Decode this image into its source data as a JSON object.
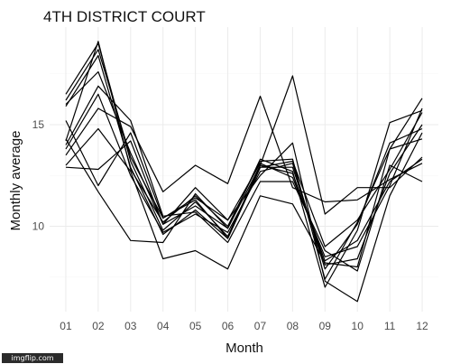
{
  "watermark": "imgflip.com",
  "chart_data": {
    "type": "line",
    "title": "4TH DISTRICT COURT",
    "xlabel": "Month",
    "ylabel": "Monthly average",
    "categories": [
      "01",
      "02",
      "03",
      "04",
      "05",
      "06",
      "07",
      "08",
      "09",
      "10",
      "11",
      "12"
    ],
    "ylim": [
      5.8,
      19.8
    ],
    "yticks": [
      10,
      15
    ],
    "grid": true,
    "legend": "none",
    "line_color": "#000000",
    "series": [
      {
        "values": [
          16.5,
          19.0,
          13.2,
          9.8,
          11.2,
          9.5,
          13.0,
          12.6,
          8.3,
          9.3,
          12.2,
          13.3
        ]
      },
      {
        "values": [
          14.2,
          19.1,
          12.8,
          10.2,
          11.5,
          10.0,
          13.2,
          13.3,
          7.4,
          10.2,
          13.8,
          16.3
        ]
      },
      {
        "values": [
          16.2,
          18.7,
          13.4,
          10.4,
          11.4,
          10.3,
          13.1,
          12.4,
          8.5,
          9.0,
          12.0,
          15.8
        ]
      },
      {
        "values": [
          15.9,
          18.4,
          12.9,
          9.6,
          10.8,
          9.4,
          12.9,
          12.9,
          8.1,
          8.4,
          12.6,
          15.0
        ]
      },
      {
        "values": [
          16.0,
          17.6,
          13.6,
          10.1,
          11.0,
          9.9,
          13.3,
          12.7,
          7.0,
          9.8,
          15.1,
          15.7
        ]
      },
      {
        "values": [
          14.0,
          16.9,
          15.2,
          10.5,
          10.7,
          9.2,
          12.2,
          12.2,
          8.8,
          7.8,
          13.0,
          12.2
        ]
      },
      {
        "values": [
          13.8,
          16.5,
          12.5,
          9.7,
          10.6,
          9.7,
          12.7,
          13.1,
          7.9,
          10.1,
          14.1,
          14.8
        ]
      },
      {
        "values": [
          13.5,
          15.8,
          14.9,
          11.7,
          13.0,
          12.1,
          16.4,
          11.9,
          11.2,
          11.3,
          12.3,
          13.1
        ]
      },
      {
        "values": [
          13.0,
          14.8,
          12.7,
          8.4,
          8.8,
          7.9,
          11.5,
          11.1,
          8.2,
          8.0,
          13.8,
          14.3
        ]
      },
      {
        "values": [
          12.9,
          12.8,
          14.2,
          10.1,
          11.9,
          10.3,
          12.5,
          14.1,
          7.3,
          6.3,
          11.5,
          14.6
        ]
      },
      {
        "values": [
          14.3,
          11.7,
          9.3,
          9.2,
          11.6,
          9.9,
          13.0,
          17.4,
          10.6,
          11.9,
          11.9,
          13.4
        ]
      },
      {
        "values": [
          15.2,
          12.0,
          14.6,
          10.4,
          11.3,
          9.4,
          12.9,
          13.2,
          9.0,
          10.3,
          12.8,
          15.6
        ]
      }
    ]
  }
}
